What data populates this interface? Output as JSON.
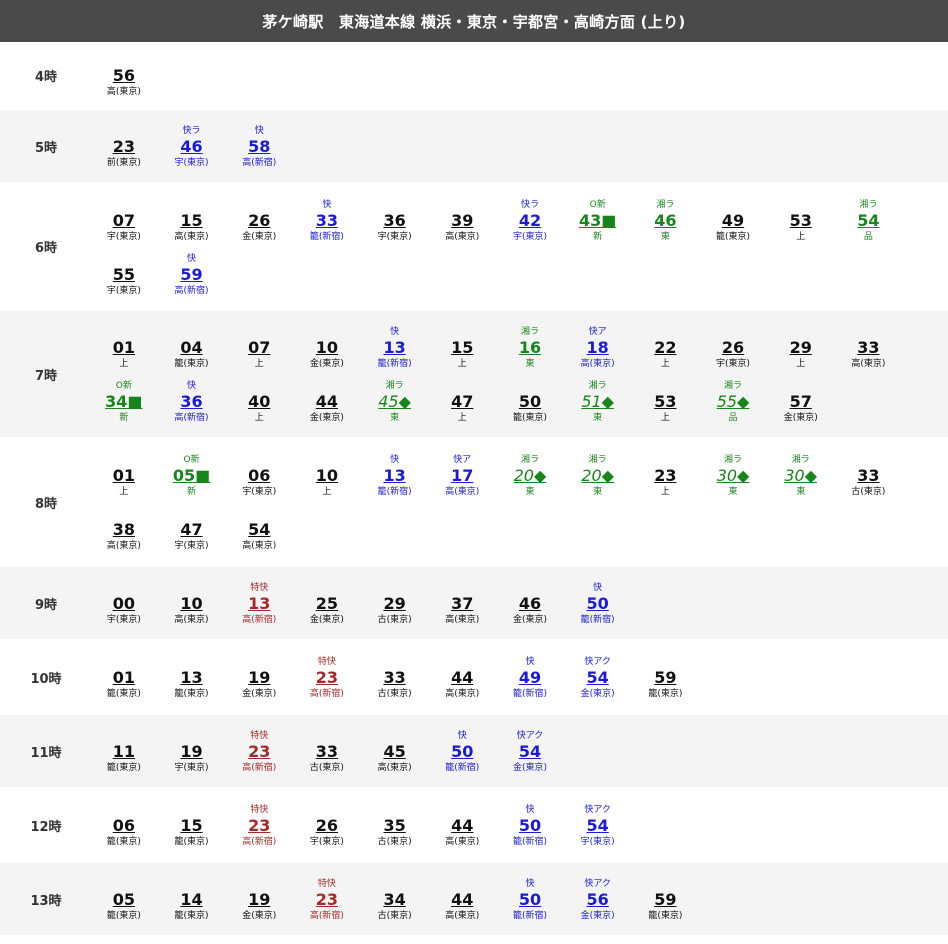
{
  "header": {
    "title": "茅ケ崎駅　東海道本線 横浜・東京・宇都宮・高崎方面 (上り)"
  },
  "rows": [
    {
      "hour": "4時",
      "trains": [
        {
          "min": "56",
          "dest": "高(東京)",
          "type": "",
          "cls": "local"
        }
      ]
    },
    {
      "hour": "5時",
      "trains": [
        {
          "min": "23",
          "dest": "前(東京)",
          "type": "",
          "cls": "local"
        },
        {
          "min": "46",
          "dest": "宇(東京)",
          "type": "快ラ",
          "cls": "rapid"
        },
        {
          "min": "58",
          "dest": "高(新宿)",
          "type": "快",
          "cls": "rapid"
        }
      ]
    },
    {
      "hour": "6時",
      "trains": [
        {
          "min": "07",
          "dest": "宇(東京)",
          "type": "",
          "cls": "local"
        },
        {
          "min": "15",
          "dest": "高(東京)",
          "type": "",
          "cls": "local"
        },
        {
          "min": "26",
          "dest": "金(東京)",
          "type": "",
          "cls": "local"
        },
        {
          "min": "33",
          "dest": "籠(新宿)",
          "type": "快",
          "cls": "rapid"
        },
        {
          "min": "36",
          "dest": "宇(東京)",
          "type": "",
          "cls": "local"
        },
        {
          "min": "39",
          "dest": "高(東京)",
          "type": "",
          "cls": "local"
        },
        {
          "min": "42",
          "dest": "宇(東京)",
          "type": "快ラ",
          "cls": "rapid"
        },
        {
          "min": "43■",
          "dest": "新",
          "type": "O新",
          "cls": "shonan"
        },
        {
          "min": "46",
          "dest": "東",
          "type": "湘ラ",
          "cls": "shonan"
        },
        {
          "min": "49",
          "dest": "籠(東京)",
          "type": "",
          "cls": "local"
        },
        {
          "min": "53",
          "dest": "上",
          "type": "",
          "cls": "local"
        },
        {
          "min": "54",
          "dest": "品",
          "type": "湘ラ",
          "cls": "shonan"
        },
        {
          "min": "55",
          "dest": "宇(東京)",
          "type": "",
          "cls": "local"
        },
        {
          "min": "59",
          "dest": "高(新宿)",
          "type": "快",
          "cls": "rapid"
        }
      ]
    },
    {
      "hour": "7時",
      "trains": [
        {
          "min": "01",
          "dest": "上",
          "type": "",
          "cls": "local"
        },
        {
          "min": "04",
          "dest": "籠(東京)",
          "type": "",
          "cls": "local"
        },
        {
          "min": "07",
          "dest": "上",
          "type": "",
          "cls": "local"
        },
        {
          "min": "10",
          "dest": "金(東京)",
          "type": "",
          "cls": "local"
        },
        {
          "min": "13",
          "dest": "籠(新宿)",
          "type": "快",
          "cls": "rapid"
        },
        {
          "min": "15",
          "dest": "上",
          "type": "",
          "cls": "local"
        },
        {
          "min": "16",
          "dest": "東",
          "type": "湘ラ",
          "cls": "shonan"
        },
        {
          "min": "18",
          "dest": "高(東京)",
          "type": "快ア",
          "cls": "rapid"
        },
        {
          "min": "22",
          "dest": "上",
          "type": "",
          "cls": "local"
        },
        {
          "min": "26",
          "dest": "宇(東京)",
          "type": "",
          "cls": "local"
        },
        {
          "min": "29",
          "dest": "上",
          "type": "",
          "cls": "local"
        },
        {
          "min": "33",
          "dest": "高(東京)",
          "type": "",
          "cls": "local"
        },
        {
          "min": "34■",
          "dest": "新",
          "type": "O新",
          "cls": "shonan"
        },
        {
          "min": "36",
          "dest": "高(新宿)",
          "type": "快",
          "cls": "rapid"
        },
        {
          "min": "40",
          "dest": "上",
          "type": "",
          "cls": "local"
        },
        {
          "min": "44",
          "dest": "金(東京)",
          "type": "",
          "cls": "local"
        },
        {
          "min": "45◆",
          "dest": "東",
          "type": "湘ラ",
          "cls": "shonan italic"
        },
        {
          "min": "47",
          "dest": "上",
          "type": "",
          "cls": "local"
        },
        {
          "min": "50",
          "dest": "籠(東京)",
          "type": "",
          "cls": "local"
        },
        {
          "min": "51◆",
          "dest": "東",
          "type": "湘ラ",
          "cls": "shonan italic"
        },
        {
          "min": "53",
          "dest": "上",
          "type": "",
          "cls": "local"
        },
        {
          "min": "55◆",
          "dest": "品",
          "type": "湘ラ",
          "cls": "shonan italic"
        },
        {
          "min": "57",
          "dest": "金(東京)",
          "type": "",
          "cls": "local"
        }
      ]
    },
    {
      "hour": "8時",
      "trains": [
        {
          "min": "01",
          "dest": "上",
          "type": "",
          "cls": "local"
        },
        {
          "min": "05■",
          "dest": "新",
          "type": "O新",
          "cls": "shonan"
        },
        {
          "min": "06",
          "dest": "宇(東京)",
          "type": "",
          "cls": "local"
        },
        {
          "min": "10",
          "dest": "上",
          "type": "",
          "cls": "local"
        },
        {
          "min": "13",
          "dest": "籠(新宿)",
          "type": "快",
          "cls": "rapid"
        },
        {
          "min": "17",
          "dest": "高(東京)",
          "type": "快ア",
          "cls": "rapid"
        },
        {
          "min": "20◆",
          "dest": "東",
          "type": "湘ラ",
          "cls": "shonan italic"
        },
        {
          "min": "20◆",
          "dest": "東",
          "type": "湘ラ",
          "cls": "shonan italic"
        },
        {
          "min": "23",
          "dest": "上",
          "type": "",
          "cls": "local"
        },
        {
          "min": "30◆",
          "dest": "東",
          "type": "湘ラ",
          "cls": "shonan italic"
        },
        {
          "min": "30◆",
          "dest": "東",
          "type": "湘ラ",
          "cls": "shonan italic"
        },
        {
          "min": "33",
          "dest": "古(東京)",
          "type": "",
          "cls": "local"
        },
        {
          "min": "38",
          "dest": "高(東京)",
          "type": "",
          "cls": "local"
        },
        {
          "min": "47",
          "dest": "宇(東京)",
          "type": "",
          "cls": "local"
        },
        {
          "min": "54",
          "dest": "高(東京)",
          "type": "",
          "cls": "local"
        }
      ]
    },
    {
      "hour": "9時",
      "trains": [
        {
          "min": "00",
          "dest": "宇(東京)",
          "type": "",
          "cls": "local"
        },
        {
          "min": "10",
          "dest": "高(東京)",
          "type": "",
          "cls": "local"
        },
        {
          "min": "13",
          "dest": "高(新宿)",
          "type": "特快",
          "cls": "ltd"
        },
        {
          "min": "25",
          "dest": "金(東京)",
          "type": "",
          "cls": "local"
        },
        {
          "min": "29",
          "dest": "古(東京)",
          "type": "",
          "cls": "local"
        },
        {
          "min": "37",
          "dest": "高(東京)",
          "type": "",
          "cls": "local"
        },
        {
          "min": "46",
          "dest": "金(東京)",
          "type": "",
          "cls": "local"
        },
        {
          "min": "50",
          "dest": "籠(新宿)",
          "type": "快",
          "cls": "rapid"
        }
      ]
    },
    {
      "hour": "10時",
      "trains": [
        {
          "min": "01",
          "dest": "籠(東京)",
          "type": "",
          "cls": "local"
        },
        {
          "min": "13",
          "dest": "籠(東京)",
          "type": "",
          "cls": "local"
        },
        {
          "min": "19",
          "dest": "金(東京)",
          "type": "",
          "cls": "local"
        },
        {
          "min": "23",
          "dest": "高(新宿)",
          "type": "特快",
          "cls": "ltd"
        },
        {
          "min": "33",
          "dest": "古(東京)",
          "type": "",
          "cls": "local"
        },
        {
          "min": "44",
          "dest": "高(東京)",
          "type": "",
          "cls": "local"
        },
        {
          "min": "49",
          "dest": "籠(新宿)",
          "type": "快",
          "cls": "rapid"
        },
        {
          "min": "54",
          "dest": "金(東京)",
          "type": "快アク",
          "cls": "rapid"
        },
        {
          "min": "59",
          "dest": "籠(東京)",
          "type": "",
          "cls": "local"
        }
      ]
    },
    {
      "hour": "11時",
      "trains": [
        {
          "min": "11",
          "dest": "籠(東京)",
          "type": "",
          "cls": "local"
        },
        {
          "min": "19",
          "dest": "宇(東京)",
          "type": "",
          "cls": "local"
        },
        {
          "min": "23",
          "dest": "高(新宿)",
          "type": "特快",
          "cls": "ltd"
        },
        {
          "min": "33",
          "dest": "古(東京)",
          "type": "",
          "cls": "local"
        },
        {
          "min": "45",
          "dest": "高(東京)",
          "type": "",
          "cls": "local"
        },
        {
          "min": "50",
          "dest": "籠(新宿)",
          "type": "快",
          "cls": "rapid"
        },
        {
          "min": "54",
          "dest": "金(東京)",
          "type": "快アク",
          "cls": "rapid"
        }
      ]
    },
    {
      "hour": "12時",
      "trains": [
        {
          "min": "06",
          "dest": "籠(東京)",
          "type": "",
          "cls": "local"
        },
        {
          "min": "15",
          "dest": "籠(東京)",
          "type": "",
          "cls": "local"
        },
        {
          "min": "23",
          "dest": "高(新宿)",
          "type": "特快",
          "cls": "ltd"
        },
        {
          "min": "26",
          "dest": "宇(東京)",
          "type": "",
          "cls": "local"
        },
        {
          "min": "35",
          "dest": "古(東京)",
          "type": "",
          "cls": "local"
        },
        {
          "min": "44",
          "dest": "高(東京)",
          "type": "",
          "cls": "local"
        },
        {
          "min": "50",
          "dest": "籠(新宿)",
          "type": "快",
          "cls": "rapid"
        },
        {
          "min": "54",
          "dest": "宇(東京)",
          "type": "快アク",
          "cls": "rapid"
        }
      ]
    },
    {
      "hour": "13時",
      "trains": [
        {
          "min": "05",
          "dest": "籠(東京)",
          "type": "",
          "cls": "local"
        },
        {
          "min": "14",
          "dest": "籠(東京)",
          "type": "",
          "cls": "local"
        },
        {
          "min": "19",
          "dest": "金(東京)",
          "type": "",
          "cls": "local"
        },
        {
          "min": "23",
          "dest": "高(新宿)",
          "type": "特快",
          "cls": "ltd"
        },
        {
          "min": "34",
          "dest": "古(東京)",
          "type": "",
          "cls": "local"
        },
        {
          "min": "44",
          "dest": "高(東京)",
          "type": "",
          "cls": "local"
        },
        {
          "min": "50",
          "dest": "籠(新宿)",
          "type": "快",
          "cls": "rapid"
        },
        {
          "min": "56",
          "dest": "金(東京)",
          "type": "快アク",
          "cls": "rapid"
        },
        {
          "min": "59",
          "dest": "籠(東京)",
          "type": "",
          "cls": "local"
        }
      ]
    }
  ]
}
